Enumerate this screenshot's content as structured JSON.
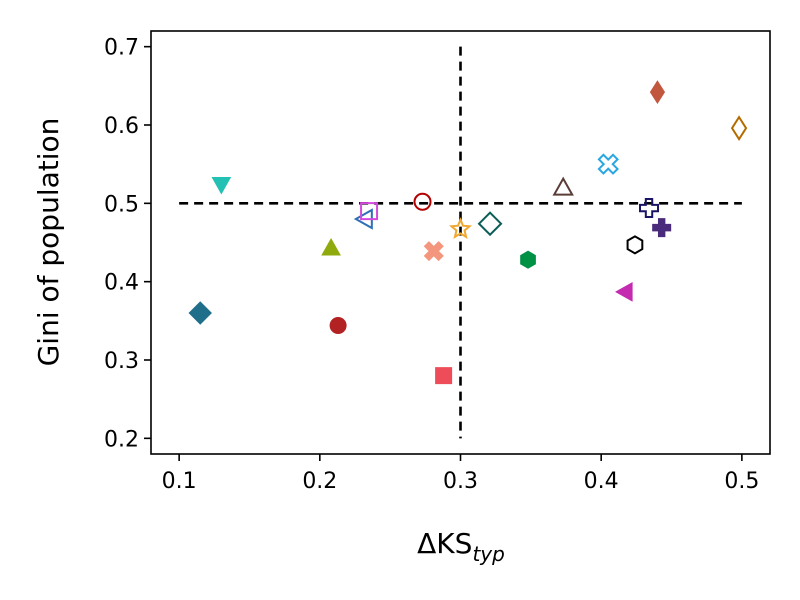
{
  "chart_data": {
    "type": "scatter",
    "xlabel": {
      "prefix": "ΔKS",
      "subscript": "typ"
    },
    "ylabel": "Gini of population",
    "xlim": [
      0.08,
      0.52
    ],
    "ylim": [
      0.18,
      0.72
    ],
    "xticks": [
      0.1,
      0.2,
      0.3,
      0.4,
      0.5
    ],
    "yticks": [
      0.2,
      0.3,
      0.4,
      0.5,
      0.6,
      0.7
    ],
    "xtick_labels": [
      "0.1",
      "0.2",
      "0.3",
      "0.4",
      "0.5"
    ],
    "ytick_labels": [
      "0.2",
      "0.3",
      "0.4",
      "0.5",
      "0.6",
      "0.7"
    ],
    "grid": false,
    "reference_lines": [
      {
        "orientation": "horizontal",
        "y": 0.5,
        "x_range": [
          0.1,
          0.5
        ],
        "style": "dashed",
        "color": "#000000"
      },
      {
        "orientation": "vertical",
        "x": 0.3,
        "y_range": [
          0.2,
          0.7
        ],
        "style": "dashed",
        "color": "#000000"
      }
    ],
    "points": [
      {
        "x": 0.115,
        "y": 0.36,
        "marker": "diamond",
        "filled": true,
        "color": "#1f6f8b"
      },
      {
        "x": 0.13,
        "y": 0.524,
        "marker": "triangle-down",
        "filled": true,
        "color": "#22c1b4"
      },
      {
        "x": 0.208,
        "y": 0.443,
        "marker": "triangle-up",
        "filled": true,
        "color": "#8faa0c"
      },
      {
        "x": 0.213,
        "y": 0.344,
        "marker": "circle",
        "filled": true,
        "color": "#b22222"
      },
      {
        "x": 0.232,
        "y": 0.48,
        "marker": "triangle-left",
        "filled": false,
        "color": "#2f6fb5"
      },
      {
        "x": 0.235,
        "y": 0.49,
        "marker": "square",
        "filled": false,
        "color": "#d44adf"
      },
      {
        "x": 0.273,
        "y": 0.502,
        "marker": "circle",
        "filled": false,
        "color": "#b30000"
      },
      {
        "x": 0.281,
        "y": 0.439,
        "marker": "x",
        "filled": true,
        "color": "#f4967e"
      },
      {
        "x": 0.288,
        "y": 0.28,
        "marker": "square",
        "filled": true,
        "color": "#ee4c58"
      },
      {
        "x": 0.3,
        "y": 0.467,
        "marker": "star",
        "filled": false,
        "color": "#f0a830"
      },
      {
        "x": 0.321,
        "y": 0.474,
        "marker": "diamond",
        "filled": false,
        "color": "#0b5d58"
      },
      {
        "x": 0.348,
        "y": 0.428,
        "marker": "hexagon",
        "filled": true,
        "color": "#009145"
      },
      {
        "x": 0.373,
        "y": 0.52,
        "marker": "triangle-up",
        "filled": false,
        "color": "#5a3d36"
      },
      {
        "x": 0.405,
        "y": 0.55,
        "marker": "x",
        "filled": false,
        "color": "#2aa7e0"
      },
      {
        "x": 0.417,
        "y": 0.387,
        "marker": "triangle-left",
        "filled": true,
        "color": "#c42bb0"
      },
      {
        "x": 0.424,
        "y": 0.447,
        "marker": "hexagon",
        "filled": false,
        "color": "#000000"
      },
      {
        "x": 0.434,
        "y": 0.494,
        "marker": "plus",
        "filled": false,
        "color": "#1b1464"
      },
      {
        "x": 0.44,
        "y": 0.642,
        "marker": "thin-diamond",
        "filled": true,
        "color": "#c1573f"
      },
      {
        "x": 0.443,
        "y": 0.469,
        "marker": "plus",
        "filled": true,
        "color": "#4a2a7a"
      },
      {
        "x": 0.498,
        "y": 0.596,
        "marker": "thin-diamond",
        "filled": false,
        "color": "#b36b00"
      }
    ]
  }
}
